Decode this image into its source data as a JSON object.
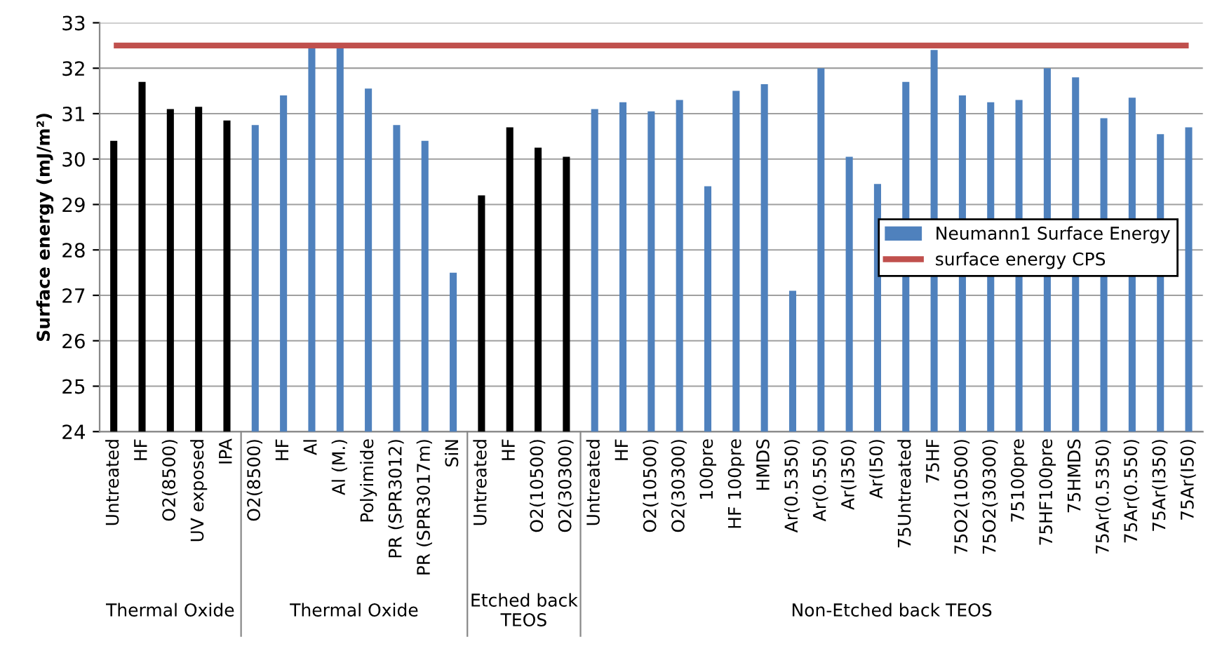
{
  "chart_data": {
    "type": "bar",
    "ylabel": "Surface energy (mJ/m²)",
    "categories": [
      "Untreated",
      "HF",
      "O2(8500)",
      "UV exposed",
      "IPA",
      "O2(8500)",
      "HF",
      "Al",
      "Al (M.)",
      "Polyimide",
      "PR (SPR3012)",
      "PR (SPR3017m)",
      "SiN",
      "Untreated",
      "HF",
      "O2(10500)",
      "O2(30300)",
      "Untreated",
      "HF",
      "O2(10500)",
      "O2(30300)",
      "100pre",
      "HF 100pre",
      "HMDS",
      "Ar(0.5350)",
      "Ar(0.550)",
      "Ar(I350)",
      "Ar(I50)",
      "75Untreated",
      "75HF",
      "75O2(10500)",
      "75O2(30300)",
      "75100pre",
      "75HF100pre",
      "75HMDS",
      "75Ar(0.5350)",
      "75Ar(0.550)",
      "75Ar(I350)",
      "75Ar(I50)"
    ],
    "series": [
      {
        "name": "Neumann1 Surface Energy",
        "color": "#4f81bd",
        "values": [
          30.4,
          31.7,
          31.1,
          31.15,
          30.85,
          30.75,
          31.4,
          32.5,
          32.5,
          31.55,
          30.75,
          30.4,
          27.5,
          29.2,
          30.7,
          30.25,
          30.05,
          31.1,
          31.25,
          31.05,
          31.3,
          29.4,
          31.5,
          31.65,
          27.1,
          32.0,
          30.05,
          29.45,
          31.7,
          32.4,
          31.4,
          31.25,
          31.3,
          32.0,
          31.8,
          30.9,
          31.35,
          30.55,
          30.7
        ],
        "colors": [
          "#000000",
          "#000000",
          "#000000",
          "#000000",
          "#000000",
          "#4f81bd",
          "#4f81bd",
          "#4f81bd",
          "#4f81bd",
          "#4f81bd",
          "#4f81bd",
          "#4f81bd",
          "#4f81bd",
          "#000000",
          "#000000",
          "#000000",
          "#000000",
          "#4f81bd",
          "#4f81bd",
          "#4f81bd",
          "#4f81bd",
          "#4f81bd",
          "#4f81bd",
          "#4f81bd",
          "#4f81bd",
          "#4f81bd",
          "#4f81bd",
          "#4f81bd",
          "#4f81bd",
          "#4f81bd",
          "#4f81bd",
          "#4f81bd",
          "#4f81bd",
          "#4f81bd",
          "#4f81bd",
          "#4f81bd",
          "#4f81bd",
          "#4f81bd",
          "#4f81bd"
        ]
      }
    ],
    "ref_lines": [
      {
        "axis": "y",
        "value": 32.5,
        "label": "surface energy CPS",
        "color": "#c0504d"
      }
    ],
    "annotations": [
      "Thermal Oxide",
      "Thermal Oxide",
      "Etched back\nTEOS",
      "Non-Etched back TEOS"
    ],
    "ylim": [
      24,
      33
    ],
    "yticks": [
      24,
      25,
      26,
      27,
      28,
      29,
      30,
      31,
      32,
      33
    ],
    "grid": "y",
    "legend": "right"
  }
}
